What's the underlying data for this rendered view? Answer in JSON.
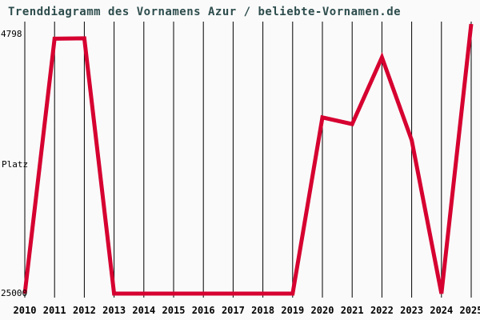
{
  "title": "Trenddiagramm des Vornamens Azur / beliebte-Vornamen.de",
  "colors": {
    "background": "#fafafa",
    "title": "#2d4c4c",
    "grid": "#000000",
    "labels": "#000000",
    "line": "#d60030"
  },
  "y_axis": {
    "top_label": "4798",
    "mid_label": "Platz",
    "bottom_label": "25000"
  },
  "chart_data": {
    "type": "line",
    "title": "Trenddiagramm des Vornamens Azur / beliebte-Vornamen.de",
    "x": [
      2010,
      2011,
      2012,
      2013,
      2014,
      2015,
      2016,
      2017,
      2018,
      2019,
      2020,
      2021,
      2022,
      2023,
      2024,
      2025
    ],
    "series": [
      {
        "name": "Azur",
        "values": [
          25000,
          5900,
          5870,
          25000,
          25000,
          25000,
          25000,
          25000,
          25000,
          25000,
          11800,
          12300,
          7300,
          13500,
          25000,
          4798
        ]
      }
    ],
    "ylabel": "Platz",
    "ylim": [
      4798,
      25000
    ],
    "y_inverted": true,
    "grid": "vertical-only",
    "legend": "none"
  }
}
